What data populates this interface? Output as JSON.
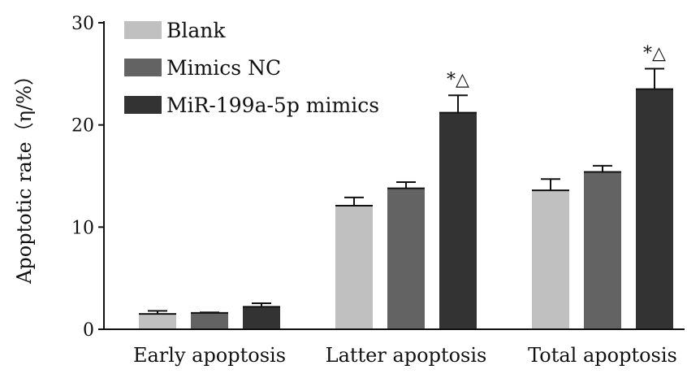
{
  "chart_data": {
    "type": "bar",
    "ylabel": "Apoptotic rate（η/%）",
    "ylim": [
      0,
      30
    ],
    "yticks": [
      "0",
      "10",
      "20",
      "30"
    ],
    "categories": [
      "Early apoptosis",
      "Latter apoptosis",
      "Total apoptosis"
    ],
    "series": [
      {
        "name": "Blank",
        "color": "#c0c0c0",
        "values": [
          1.5,
          12.1,
          13.6
        ],
        "errors": [
          0.3,
          0.8,
          1.1
        ]
      },
      {
        "name": "Mimics NC",
        "color": "#636363",
        "values": [
          1.6,
          13.8,
          15.4
        ],
        "errors": [
          0.05,
          0.6,
          0.6
        ]
      },
      {
        "name": "MiR-199a-5p mimics",
        "color": "#333333",
        "values": [
          2.2,
          21.2,
          23.5
        ],
        "errors": [
          0.35,
          1.7,
          2.0
        ]
      }
    ],
    "annotations": [
      "",
      "*△",
      "*△"
    ],
    "legend_position": "top-left",
    "grid": false
  }
}
